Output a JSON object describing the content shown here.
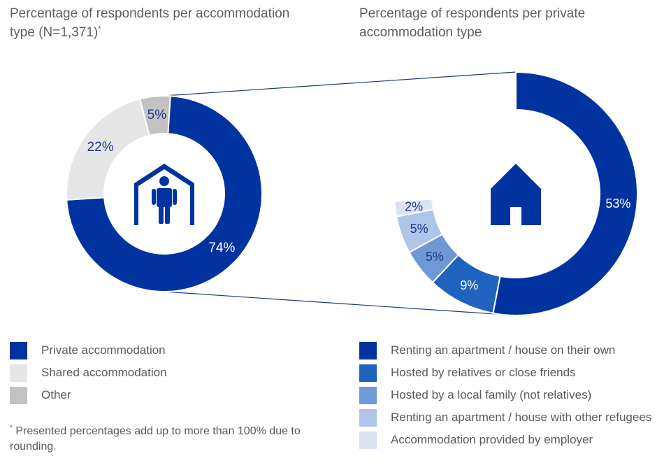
{
  "chart_data": [
    {
      "type": "pie",
      "title": "Percentage of respondents per accommodation type (N=1,371)",
      "title_main": "Percentage of respondents per accommodation type (N=1,371)",
      "title_mark": "*",
      "series": [
        {
          "name": "Private accommodation",
          "value": 74,
          "label": "74%",
          "color": "#0033a0"
        },
        {
          "name": "Shared accommodation",
          "value": 22,
          "label": "22%",
          "color": "#e6e6e6"
        },
        {
          "name": "Other",
          "value": 5,
          "label": "5%",
          "color": "#c2c2c2"
        }
      ],
      "legend_position": "bottom-left",
      "center_icon": "person-in-shelter-icon"
    },
    {
      "type": "pie",
      "title": "Percentage of respondents per private accommodation type",
      "series": [
        {
          "name": "Renting an apartment / house on their own",
          "value": 53,
          "label": "53%",
          "color": "#0033a0"
        },
        {
          "name": "Hosted by relatives or close friends",
          "value": 9,
          "label": "9%",
          "color": "#1f63be"
        },
        {
          "name": "Hosted by a local family (not relatives)",
          "value": 5,
          "label": "5%",
          "color": "#6f99d6"
        },
        {
          "name": "Renting an apartment / house with other refugees",
          "value": 5,
          "label": "5%",
          "color": "#aec4e8"
        },
        {
          "name": "Accommodation provided by employer",
          "value": 2,
          "label": "2%",
          "color": "#dbe3f3"
        }
      ],
      "legend_position": "bottom-right",
      "center_icon": "house-icon"
    }
  ],
  "footnote": {
    "mark": "*",
    "text": " Presented percentages add up to more than 100% due to rounding."
  },
  "colors": {
    "connector": "#1e3a8a",
    "label_on_dark": "#ffffff",
    "label_on_light": "#1e3a8a",
    "icon": "#0033a0"
  }
}
